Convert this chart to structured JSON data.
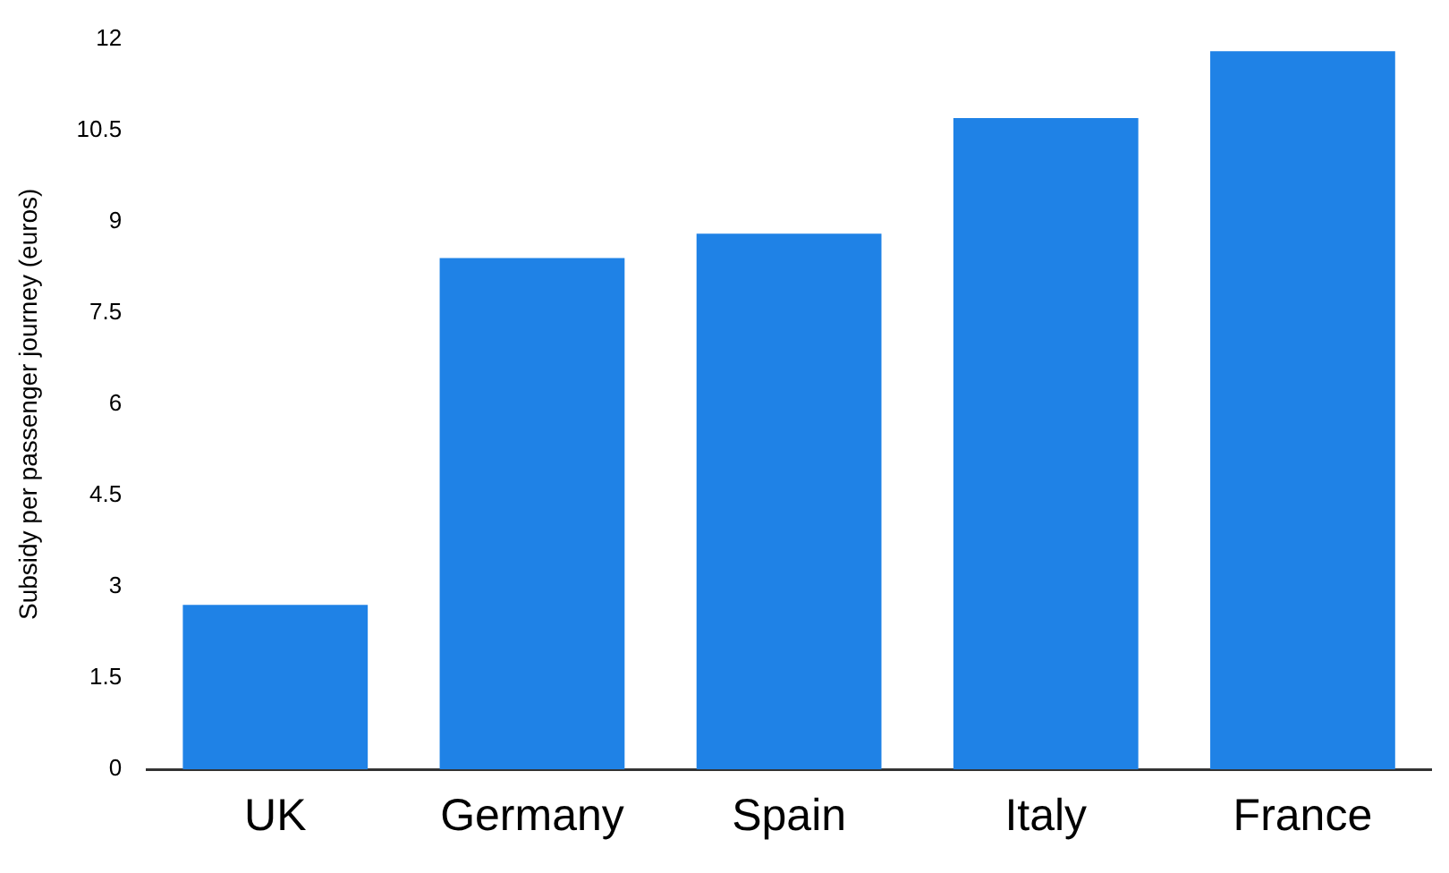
{
  "chart_data": {
    "type": "bar",
    "ylabel": "Subsidy per passenger journey (euros)",
    "categories": [
      "UK",
      "Germany",
      "Spain",
      "Italy",
      "France"
    ],
    "values": [
      2.7,
      8.4,
      8.8,
      10.7,
      11.8
    ],
    "color": "#1f82e6",
    "ylim": [
      0,
      12
    ],
    "yticks": [
      0,
      1.5,
      3,
      4.5,
      6,
      7.5,
      9,
      10.5,
      12
    ],
    "grid": false
  }
}
